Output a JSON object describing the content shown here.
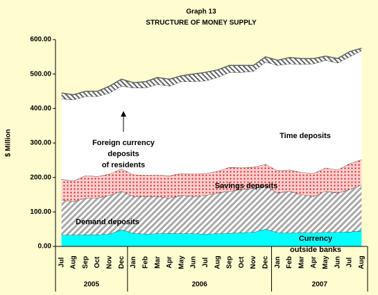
{
  "chart_data": {
    "type": "stacked_area",
    "title": "Graph 13",
    "subtitle": "STRUCTURE OF MONEY SUPPLY",
    "y_label": "$ Million",
    "categories": [
      "Jul",
      "Aug",
      "Sep",
      "Oct",
      "Nov",
      "Dec",
      "Jan",
      "Feb",
      "Mar",
      "Apr",
      "May",
      "Jun",
      "Jul",
      "Aug",
      "Sep",
      "Oct",
      "Nov",
      "Dec",
      "Jan",
      "Feb",
      "Mar",
      "Apr",
      "May",
      "Jun",
      "Jul",
      "Aug"
    ],
    "x_groups": [
      {
        "label": "2005",
        "span": 6
      },
      {
        "label": "2006",
        "span": 12
      },
      {
        "label": "2007",
        "span": 8
      }
    ],
    "series": [
      {
        "name": "Currency outside banks",
        "color": "#00ffff",
        "values": [
          33,
          33,
          34,
          34,
          36,
          48,
          38,
          36,
          37,
          38,
          37,
          37,
          36,
          37,
          38,
          40,
          41,
          50,
          40,
          39,
          40,
          39,
          41,
          41,
          42,
          45
        ]
      },
      {
        "name": "Demand deposits",
        "color": "#b0b0b0",
        "values": [
          102,
          97,
          106,
          106,
          112,
          112,
          107,
          109,
          108,
          102,
          111,
          108,
          112,
          118,
          122,
          125,
          127,
          125,
          115,
          121,
          110,
          106,
          119,
          114,
          123,
          133
        ]
      },
      {
        "name": "Savings deposits",
        "color": "#e03030",
        "values": [
          60,
          60,
          65,
          63,
          62,
          65,
          63,
          62,
          62,
          65,
          64,
          65,
          64,
          63,
          70,
          63,
          62,
          63,
          65,
          62,
          65,
          67,
          68,
          67,
          75,
          74
        ]
      },
      {
        "name": "Time deposits",
        "color": "#ffffff",
        "values": [
          233,
          235,
          230,
          232,
          235,
          240,
          252,
          253,
          263,
          260,
          266,
          268,
          268,
          272,
          275,
          277,
          278,
          297,
          305,
          308,
          313,
          318,
          312,
          310,
          310,
          316
        ]
      },
      {
        "name": "Foreign currency\ndeposits\nof residents",
        "color": "#808080",
        "values": [
          17,
          15,
          15,
          15,
          20,
          20,
          15,
          18,
          20,
          20,
          17,
          22,
          25,
          22,
          20,
          20,
          17,
          15,
          15,
          18,
          17,
          15,
          12,
          13,
          15,
          7
        ]
      }
    ],
    "ylim": [
      0,
      600
    ],
    "yticks": [
      {
        "value": 0,
        "label": "0.00"
      },
      {
        "value": 100,
        "label": "100.00"
      },
      {
        "value": 200,
        "label": "200.00"
      },
      {
        "value": 300,
        "label": "300.00"
      },
      {
        "value": 400,
        "label": "400.00"
      },
      {
        "value": 500,
        "label": "500.00"
      },
      {
        "value": 600,
        "label": "600.00"
      }
    ]
  }
}
